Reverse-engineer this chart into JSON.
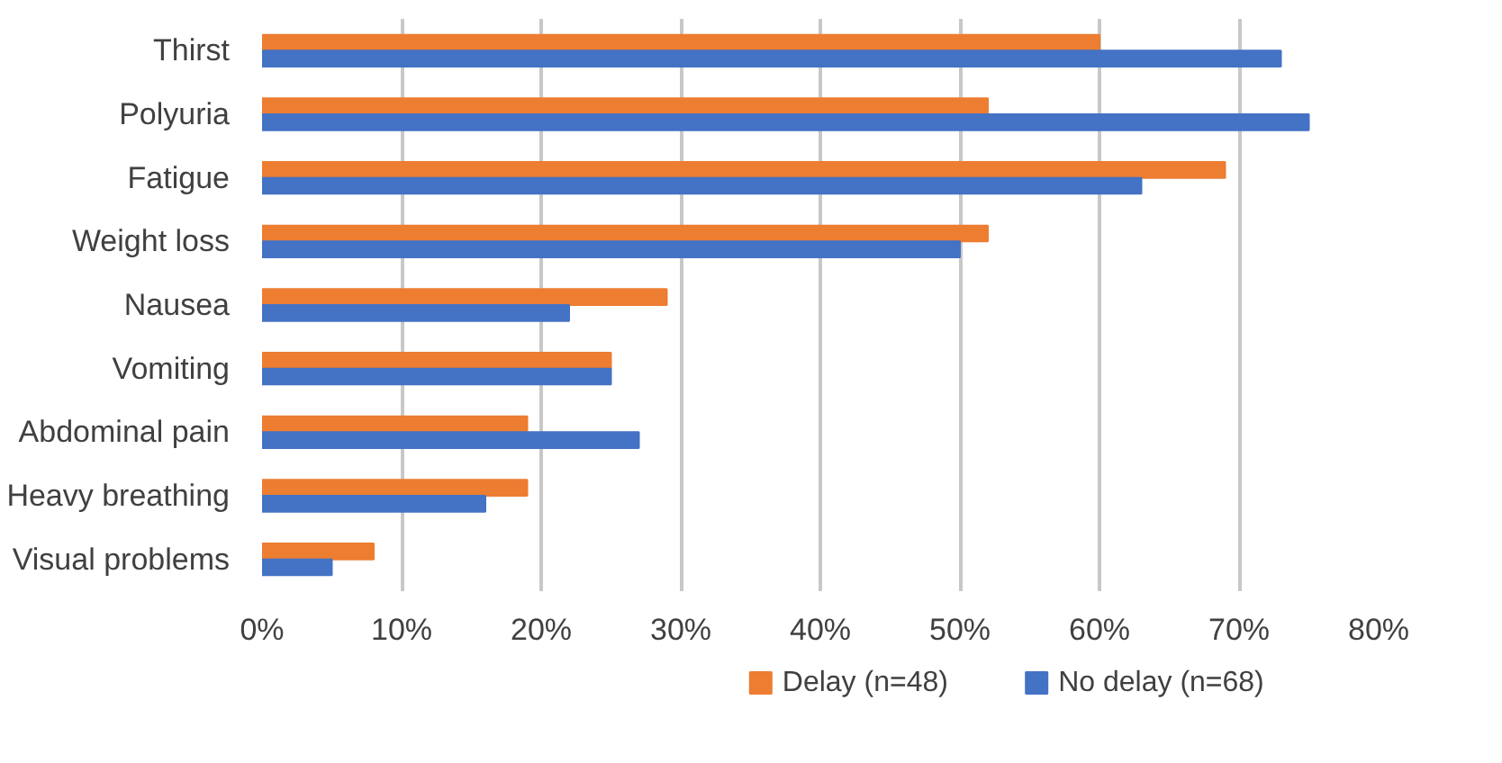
{
  "chart_data": {
    "type": "bar",
    "orientation": "horizontal",
    "categories": [
      "Thirst",
      "Polyuria",
      "Fatigue",
      "Weight loss",
      "Nausea",
      "Vomiting",
      "Abdominal pain",
      "Heavy breathing",
      "Visual problems"
    ],
    "series": [
      {
        "name": "Delay (n=48)",
        "color": "#ed7d31",
        "values": [
          60,
          52,
          69,
          52,
          29,
          25,
          19,
          19,
          8
        ]
      },
      {
        "name": "No delay (n=68)",
        "color": "#4472c4",
        "values": [
          73,
          75,
          63,
          50,
          22,
          25,
          27,
          16,
          5
        ]
      }
    ],
    "xlim": [
      0,
      80
    ],
    "xticks": [
      {
        "value": 0,
        "label": "0%"
      },
      {
        "value": 10,
        "label": "10%"
      },
      {
        "value": 20,
        "label": "20%"
      },
      {
        "value": 30,
        "label": "30%"
      },
      {
        "value": 40,
        "label": "40%"
      },
      {
        "value": 50,
        "label": "50%"
      },
      {
        "value": 60,
        "label": "60%"
      },
      {
        "value": 70,
        "label": "70%"
      },
      {
        "value": 80,
        "label": "80%"
      }
    ],
    "grid": "x",
    "legend": "bottom"
  }
}
